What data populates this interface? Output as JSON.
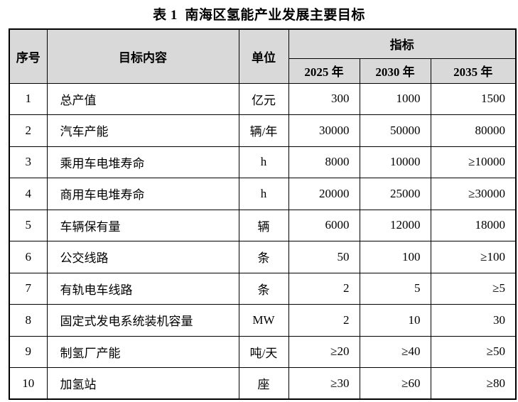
{
  "page": {
    "title": "表 1  南海区氢能产业发展主要目标"
  },
  "table": {
    "headers": {
      "no": "序号",
      "content": "目标内容",
      "unit": "单位",
      "indicator_group": "指标",
      "years": [
        "2025 年",
        "2030 年",
        "2035 年"
      ]
    },
    "rows": [
      {
        "no": "1",
        "content": "总产值",
        "unit": "亿元",
        "values": [
          "300",
          "1000",
          "1500"
        ]
      },
      {
        "no": "2",
        "content": "汽车产能",
        "unit": "辆/年",
        "values": [
          "30000",
          "50000",
          "80000"
        ]
      },
      {
        "no": "3",
        "content": "乘用车电堆寿命",
        "unit": "h",
        "values": [
          "8000",
          "10000",
          "≥10000"
        ]
      },
      {
        "no": "4",
        "content": "商用车电堆寿命",
        "unit": "h",
        "values": [
          "20000",
          "25000",
          "≥30000"
        ]
      },
      {
        "no": "5",
        "content": "车辆保有量",
        "unit": "辆",
        "values": [
          "6000",
          "12000",
          "18000"
        ]
      },
      {
        "no": "6",
        "content": "公交线路",
        "unit": "条",
        "values": [
          "50",
          "100",
          "≥100"
        ]
      },
      {
        "no": "7",
        "content": "有轨电车线路",
        "unit": "条",
        "values": [
          "2",
          "5",
          "≥5"
        ]
      },
      {
        "no": "8",
        "content": "固定式发电系统装机容量",
        "unit": "MW",
        "values": [
          "2",
          "10",
          "30"
        ]
      },
      {
        "no": "9",
        "content": "制氢厂产能",
        "unit": "吨/天",
        "values": [
          "≥20",
          "≥40",
          "≥50"
        ]
      },
      {
        "no": "10",
        "content": "加氢站",
        "unit": "座",
        "values": [
          "≥30",
          "≥60",
          "≥80"
        ]
      }
    ]
  },
  "colors": {
    "header_bg": "#d9d9d9",
    "border": "#000000",
    "text": "#000000",
    "page_bg": "#ffffff"
  }
}
